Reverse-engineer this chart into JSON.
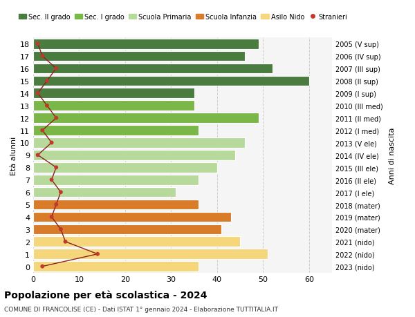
{
  "ages": [
    18,
    17,
    16,
    15,
    14,
    13,
    12,
    11,
    10,
    9,
    8,
    7,
    6,
    5,
    4,
    3,
    2,
    1,
    0
  ],
  "years": [
    "2005 (V sup)",
    "2006 (IV sup)",
    "2007 (III sup)",
    "2008 (II sup)",
    "2009 (I sup)",
    "2010 (III med)",
    "2011 (II med)",
    "2012 (I med)",
    "2013 (V ele)",
    "2014 (IV ele)",
    "2015 (III ele)",
    "2016 (II ele)",
    "2017 (I ele)",
    "2018 (mater)",
    "2019 (mater)",
    "2020 (mater)",
    "2021 (nido)",
    "2022 (nido)",
    "2023 (nido)"
  ],
  "bar_values": [
    49,
    46,
    52,
    60,
    35,
    35,
    49,
    36,
    46,
    44,
    40,
    36,
    31,
    36,
    43,
    41,
    45,
    51,
    36
  ],
  "bar_colors": [
    "#4a7c3f",
    "#4a7c3f",
    "#4a7c3f",
    "#4a7c3f",
    "#4a7c3f",
    "#7ab648",
    "#7ab648",
    "#7ab648",
    "#b8d99c",
    "#b8d99c",
    "#b8d99c",
    "#b8d99c",
    "#b8d99c",
    "#d97c2a",
    "#d97c2a",
    "#d97c2a",
    "#f5d67a",
    "#f5d67a",
    "#f5d67a"
  ],
  "stranieri_values": [
    1,
    2,
    5,
    3,
    1,
    3,
    5,
    2,
    4,
    1,
    5,
    4,
    6,
    5,
    4,
    6,
    7,
    14,
    2
  ],
  "legend_labels": [
    "Sec. II grado",
    "Sec. I grado",
    "Scuola Primaria",
    "Scuola Infanzia",
    "Asilo Nido",
    "Stranieri"
  ],
  "legend_colors": [
    "#4a7c3f",
    "#7ab648",
    "#b8d99c",
    "#d97c2a",
    "#f5d67a",
    "#c0392b"
  ],
  "title": "Popolazione per età scolastica - 2024",
  "subtitle": "COMUNE DI FRANCOLISE (CE) - Dati ISTAT 1° gennaio 2024 - Elaborazione TUTTITALIA.IT",
  "ylabel_left": "Età alunni",
  "ylabel_right": "Anni di nascita",
  "xlim": [
    0,
    65
  ],
  "background_color": "#f5f5f5",
  "grid_color": "#cccccc",
  "line_color": "#8b2020",
  "dot_color": "#c0392b"
}
